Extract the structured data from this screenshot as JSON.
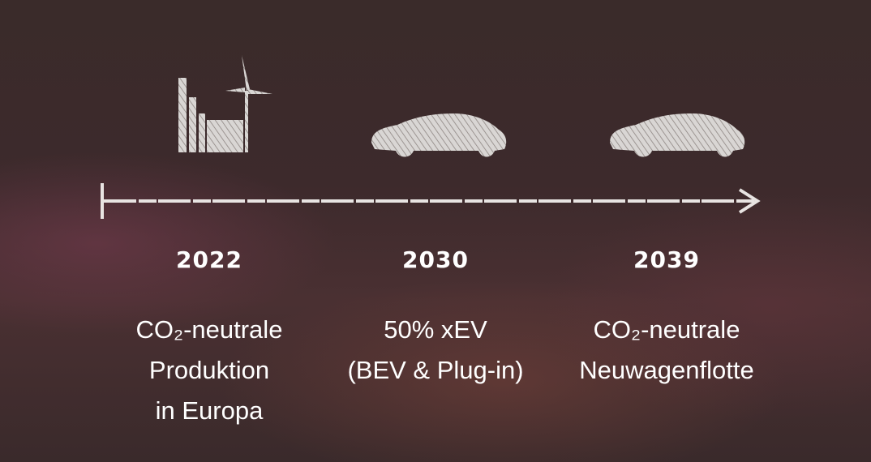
{
  "milestones": [
    {
      "year": "2022",
      "lines": [
        "CO₂-neutrale",
        "Produktion",
        "in Europa"
      ]
    },
    {
      "year": "2030",
      "lines": [
        "50% xEV",
        "(BEV & Plug-in)"
      ]
    },
    {
      "year": "2039",
      "lines": [
        "CO₂-neutrale",
        "Neuwagenflotte"
      ]
    }
  ]
}
